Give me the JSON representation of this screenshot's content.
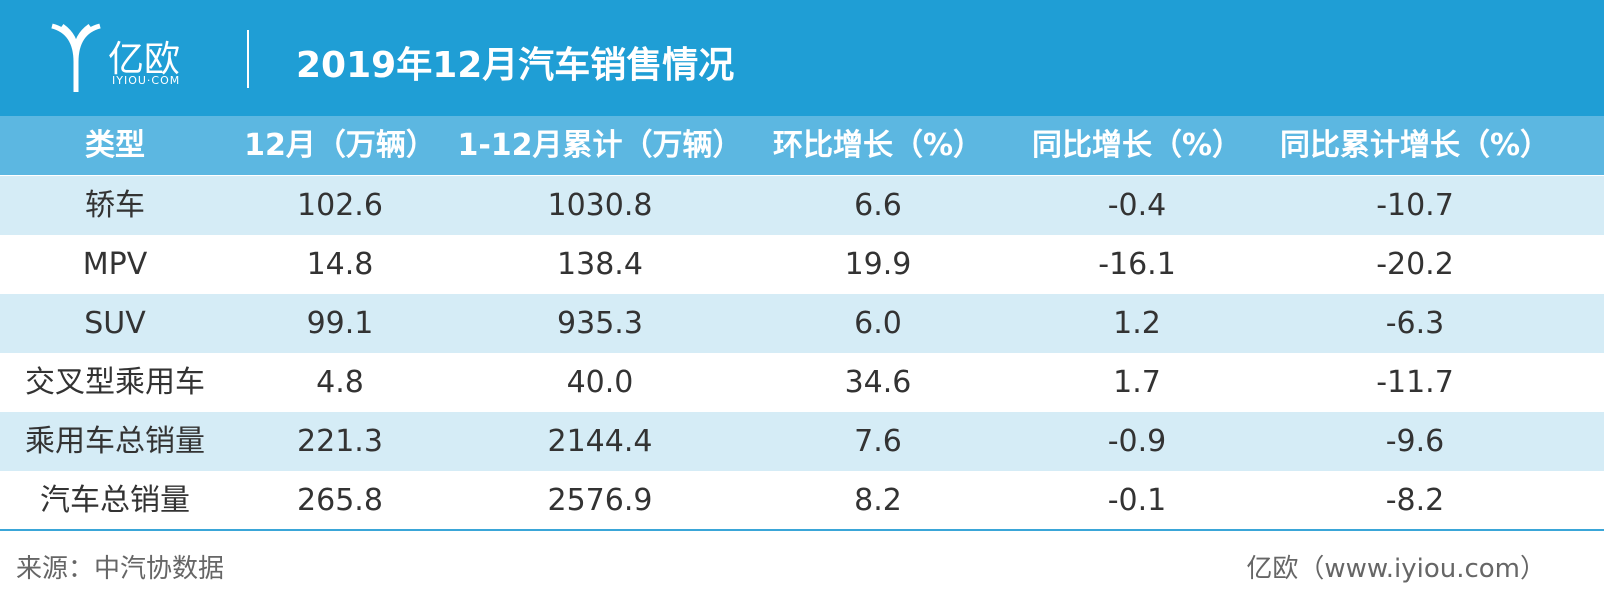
{
  "header": {
    "logo_text": "亿欧",
    "logo_subtext": "IYIOU·COM",
    "title": "2019年12月汽车销售情况"
  },
  "table": {
    "columns": [
      "类型",
      "12月（万辆）",
      "1-12月累计（万辆）",
      "环比增长（%）",
      "同比增长（%）",
      "同比累计增长（%）"
    ],
    "rows": [
      [
        "轿车",
        "102.6",
        "1030.8",
        "6.6",
        "-0.4",
        "-10.7"
      ],
      [
        "MPV",
        "14.8",
        "138.4",
        "19.9",
        "-16.1",
        "-20.2"
      ],
      [
        "SUV",
        "99.1",
        "935.3",
        "6.0",
        "1.2",
        "-6.3"
      ],
      [
        "交叉型乘用车",
        "4.8",
        "40.0",
        "34.6",
        "1.7",
        "-11.7"
      ],
      [
        "乘用车总销量",
        "221.3",
        "2144.4",
        "7.6",
        "-0.9",
        "-9.6"
      ],
      [
        "汽车总销量",
        "265.8",
        "2576.9",
        "8.2",
        "-0.1",
        "-8.2"
      ]
    ]
  },
  "footer": {
    "source": "来源：中汽协数据",
    "credit": "亿欧（www.iyiou.com）"
  }
}
